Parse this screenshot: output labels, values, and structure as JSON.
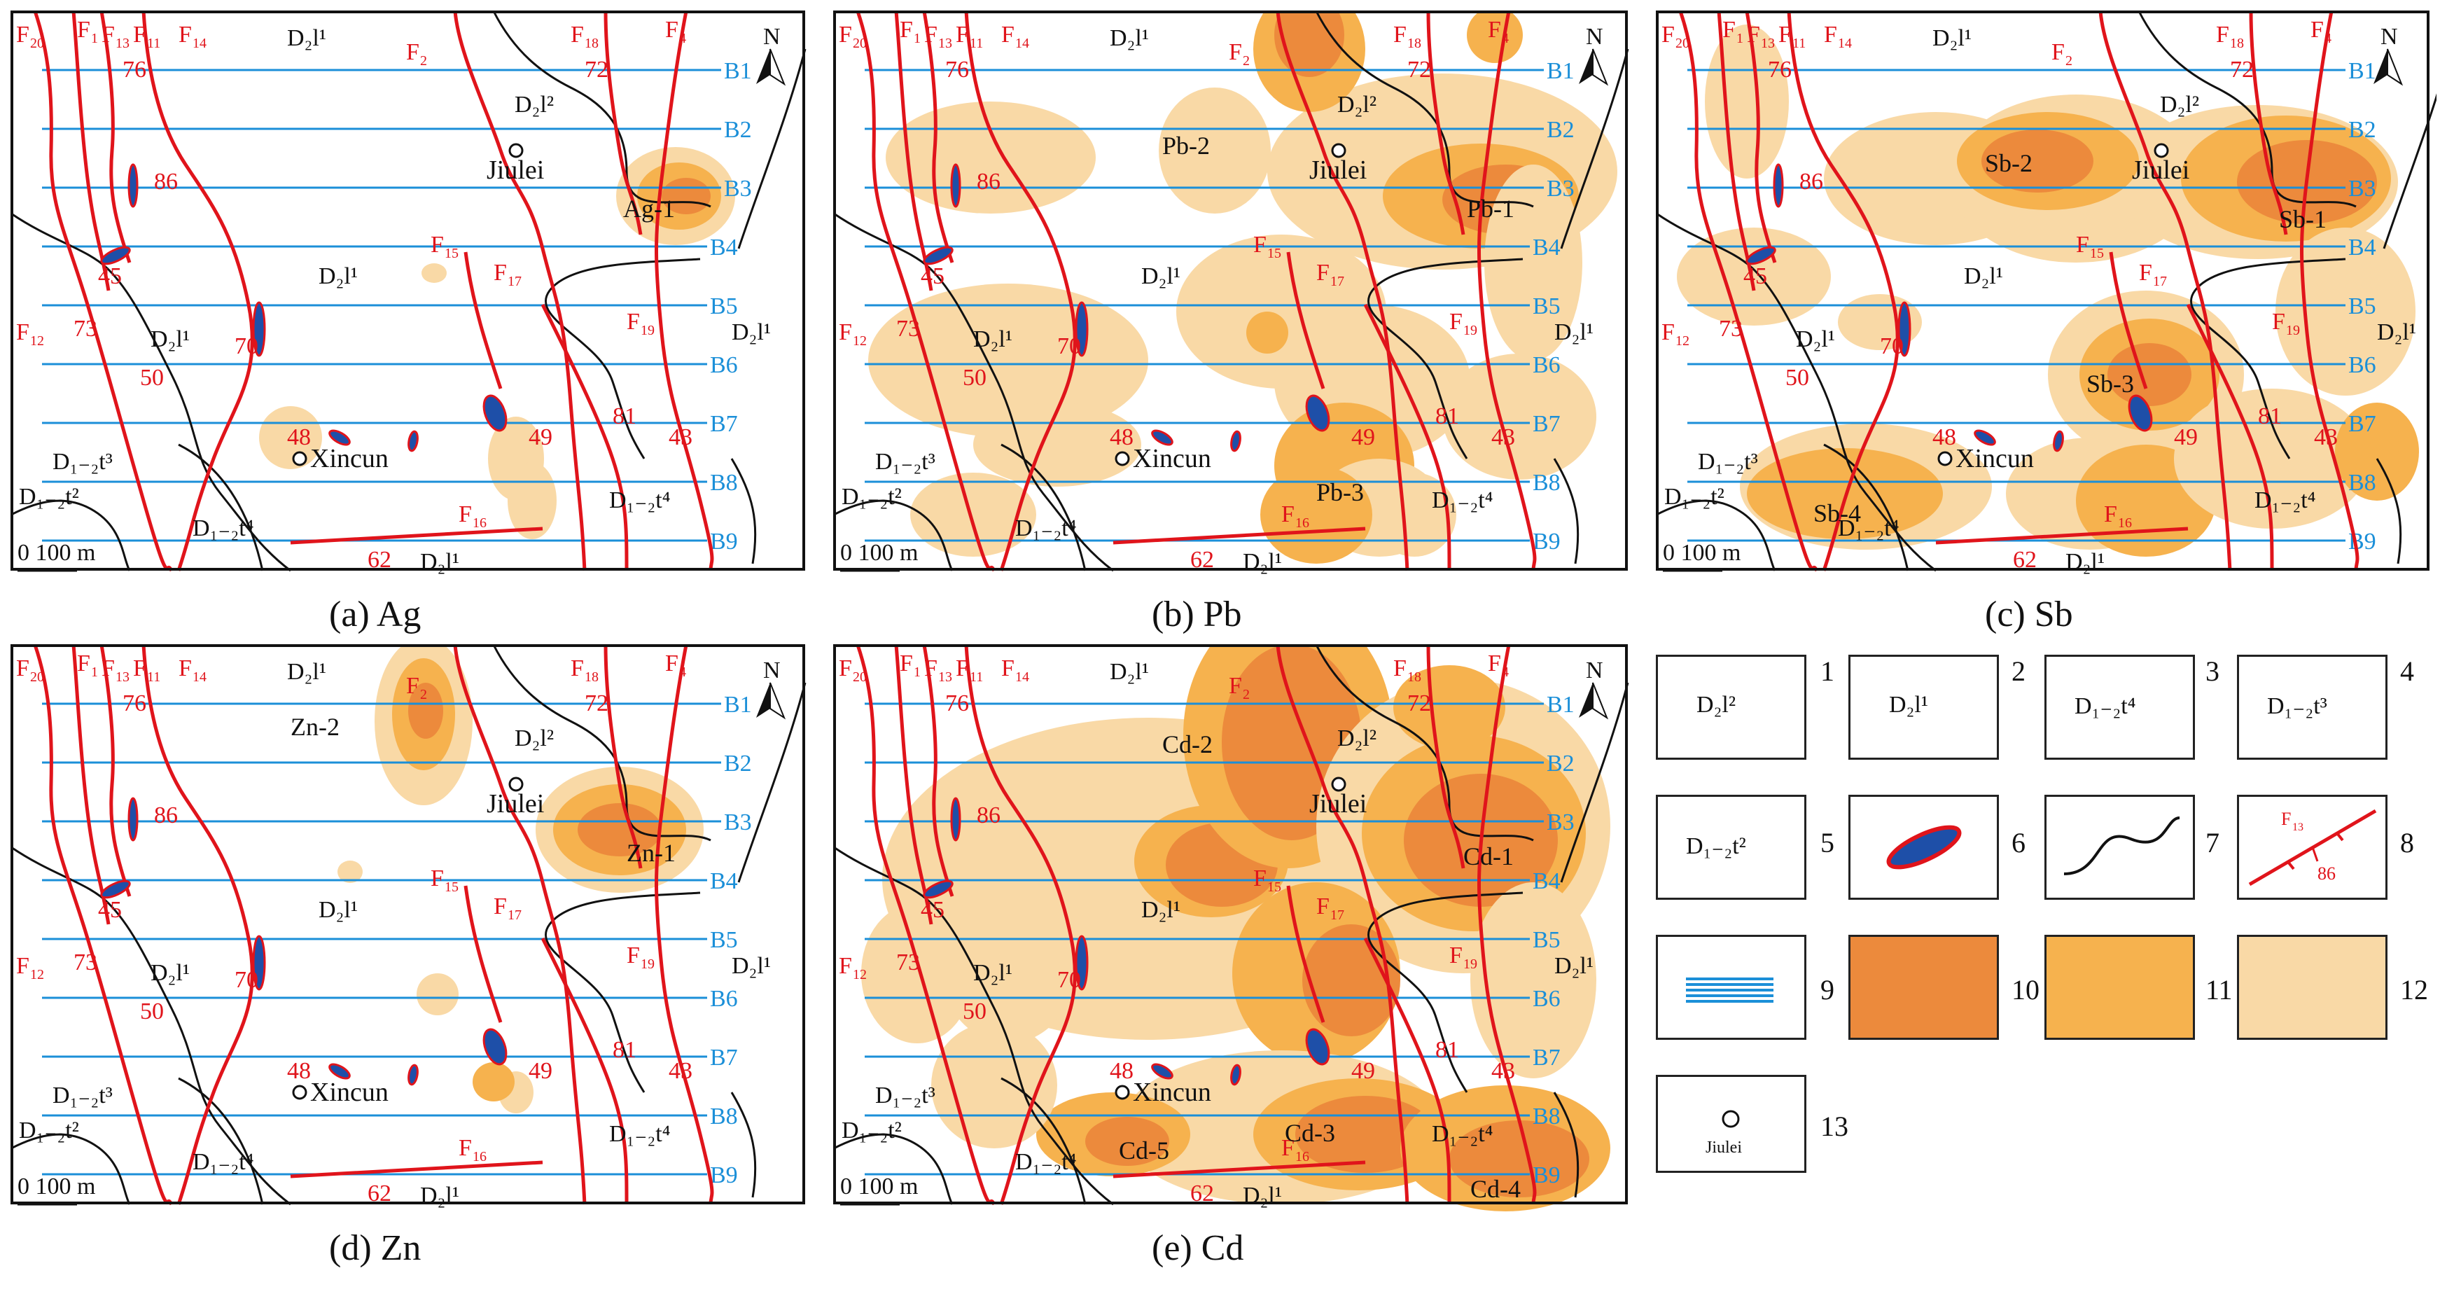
{
  "figure": "Geochemical anomaly maps of soil survey",
  "colors": {
    "fault": "#e0141b",
    "boundary": "#111111",
    "line": "#1b8fd8",
    "line_label": "#1b8fd8",
    "fault_label": "#e0141b",
    "level10": "#ec8a3c",
    "level11": "#f6b24e",
    "level12": "#f9d9a6",
    "orebody_fill": "#1e4fa8",
    "orebody_edge": "#e0141b"
  },
  "survey_lines": [
    "B1",
    "B2",
    "B3",
    "B4",
    "B5",
    "B6",
    "B7",
    "B8",
    "B9"
  ],
  "faults": [
    "F20",
    "F1",
    "F13",
    "F11",
    "F14",
    "F2",
    "F18",
    "F4",
    "F15",
    "F17",
    "F12",
    "F19",
    "F16"
  ],
  "strata_labels": {
    "d2l1": "D₂l¹",
    "d2l2": "D₂l²",
    "d12t4": "D₁₋₂t⁴",
    "d12t3": "D₁₋₂t³",
    "d12t2": "D₁₋₂t²"
  },
  "dip_values": [
    "76",
    "72",
    "86",
    "45",
    "73",
    "70",
    "50",
    "48",
    "49",
    "81",
    "43",
    "62"
  ],
  "villages": [
    "Jiulei",
    "Xincun"
  ],
  "north": "N",
  "scale_bar": "0 100 m",
  "panels": [
    {
      "id": "a",
      "caption": "(a) Ag",
      "anomalies": [
        "Ag-1"
      ]
    },
    {
      "id": "b",
      "caption": "(b) Pb",
      "anomalies": [
        "Pb-1",
        "Pb-2",
        "Pb-3"
      ]
    },
    {
      "id": "c",
      "caption": "(c) Sb",
      "anomalies": [
        "Sb-1",
        "Sb-2",
        "Sb-3",
        "Sb-4"
      ]
    },
    {
      "id": "d",
      "caption": "(d) Zn",
      "anomalies": [
        "Zn-1",
        "Zn-2"
      ]
    },
    {
      "id": "e",
      "caption": "(e) Cd",
      "anomalies": [
        "Cd-1",
        "Cd-2",
        "Cd-3",
        "Cd-4",
        "Cd-5"
      ]
    }
  ],
  "legend": {
    "items": [
      {
        "num": "1",
        "label": "D₂l²"
      },
      {
        "num": "2",
        "label": "D₂l¹"
      },
      {
        "num": "3",
        "label": "D₁₋₂t⁴"
      },
      {
        "num": "4",
        "label": "D₁₋₂t³"
      },
      {
        "num": "5",
        "label": "D₁₋₂t²"
      },
      {
        "num": "6",
        "label": ""
      },
      {
        "num": "7",
        "label": ""
      },
      {
        "num": "8",
        "label": "F₁₃ 86"
      },
      {
        "num": "9",
        "label": ""
      },
      {
        "num": "10",
        "label": ""
      },
      {
        "num": "11",
        "label": ""
      },
      {
        "num": "12",
        "label": ""
      },
      {
        "num": "13",
        "label": "Jiulei"
      }
    ]
  }
}
